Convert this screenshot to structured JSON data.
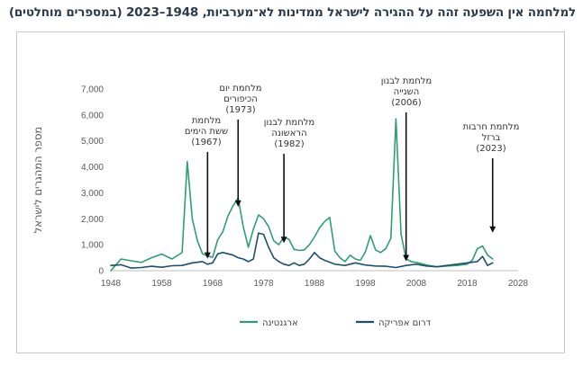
{
  "chart_data": {
    "type": "line",
    "title": "למלחמה אין השפעה זהה על ההגירה לישראל ממדינות לא־מערביות, 1948–2023 (במספרים מוחלטים)",
    "ylabel": "מספר המהגרים לישראל",
    "xlim": [
      1948,
      2028
    ],
    "ylim": [
      0,
      7000
    ],
    "xticks": [
      "1948",
      "1958",
      "1968",
      "1978",
      "1988",
      "1998",
      "2008",
      "2018",
      "2028"
    ],
    "yticks": [
      "0",
      "1,000",
      "2,000",
      "3,000",
      "4,000",
      "5,000",
      "6,000",
      "7,000"
    ],
    "grid": false,
    "legend_position": "bottom",
    "colors": {
      "argentina": "#2f9e73",
      "south_africa": "#1d4f72"
    },
    "series": [
      {
        "name": "ארגנטינה",
        "x": [
          1948,
          1950,
          1952,
          1954,
          1956,
          1958,
          1960,
          1962,
          1963,
          1964,
          1965,
          1966,
          1967,
          1968,
          1969,
          1970,
          1971,
          1972,
          1973,
          1974,
          1975,
          1976,
          1977,
          1978,
          1979,
          1980,
          1981,
          1982,
          1983,
          1984,
          1985,
          1986,
          1987,
          1988,
          1989,
          1990,
          1991,
          1992,
          1993,
          1994,
          1995,
          1996,
          1997,
          1998,
          1999,
          2000,
          2001,
          2002,
          2003,
          2004,
          2005,
          2006,
          2007,
          2008,
          2010,
          2012,
          2014,
          2016,
          2018,
          2019,
          2020,
          2021,
          2022,
          2023
        ],
        "values": [
          0,
          450,
          380,
          320,
          500,
          640,
          450,
          700,
          4200,
          2000,
          1150,
          650,
          560,
          520,
          1200,
          1500,
          2100,
          2500,
          2800,
          1700,
          900,
          1600,
          2150,
          2000,
          1700,
          1150,
          1000,
          1300,
          1200,
          820,
          780,
          800,
          1000,
          1300,
          1650,
          1900,
          2050,
          750,
          500,
          350,
          600,
          450,
          400,
          720,
          1350,
          800,
          700,
          850,
          1250,
          5850,
          1400,
          450,
          350,
          320,
          220,
          150,
          180,
          200,
          250,
          400,
          850,
          950,
          600,
          450
        ]
      },
      {
        "name": "דרום אפריקה",
        "x": [
          1948,
          1950,
          1952,
          1954,
          1956,
          1958,
          1960,
          1962,
          1964,
          1966,
          1967,
          1968,
          1969,
          1970,
          1971,
          1972,
          1973,
          1974,
          1975,
          1976,
          1977,
          1978,
          1979,
          1980,
          1981,
          1982,
          1983,
          1984,
          1985,
          1986,
          1987,
          1988,
          1989,
          1990,
          1992,
          1994,
          1996,
          1998,
          2000,
          2002,
          2004,
          2006,
          2008,
          2010,
          2012,
          2014,
          2016,
          2018,
          2020,
          2021,
          2022,
          2023
        ],
        "values": [
          200,
          230,
          100,
          120,
          170,
          130,
          190,
          200,
          300,
          350,
          250,
          300,
          650,
          700,
          650,
          600,
          500,
          450,
          350,
          450,
          1450,
          1400,
          900,
          500,
          350,
          250,
          200,
          300,
          200,
          250,
          450,
          700,
          500,
          400,
          250,
          200,
          300,
          220,
          180,
          170,
          120,
          200,
          250,
          180,
          150,
          200,
          250,
          300,
          350,
          550,
          200,
          300
        ]
      }
    ],
    "annotations": [
      {
        "lines": [
          "מלחמת",
          "ששת הימים",
          "(1967)"
        ],
        "year": 1967,
        "arrow_to": 500
      },
      {
        "lines": [
          "מלחמת יום",
          "הכיפורים",
          "(1973)"
        ],
        "year": 1973,
        "arrow_to": 2500
      },
      {
        "lines": [
          "מלחמת לבנון",
          "הראשונה",
          "(1982)"
        ],
        "year": 1982,
        "arrow_to": 1100
      },
      {
        "lines": [
          "מלחמת לבנון",
          "השנייה",
          "(2006)"
        ],
        "year": 2006,
        "arrow_to": 400
      },
      {
        "lines": [
          "מלחמת חרבות",
          "ברזל",
          "(2023)"
        ],
        "year": 2023,
        "arrow_to": 1500
      }
    ]
  }
}
